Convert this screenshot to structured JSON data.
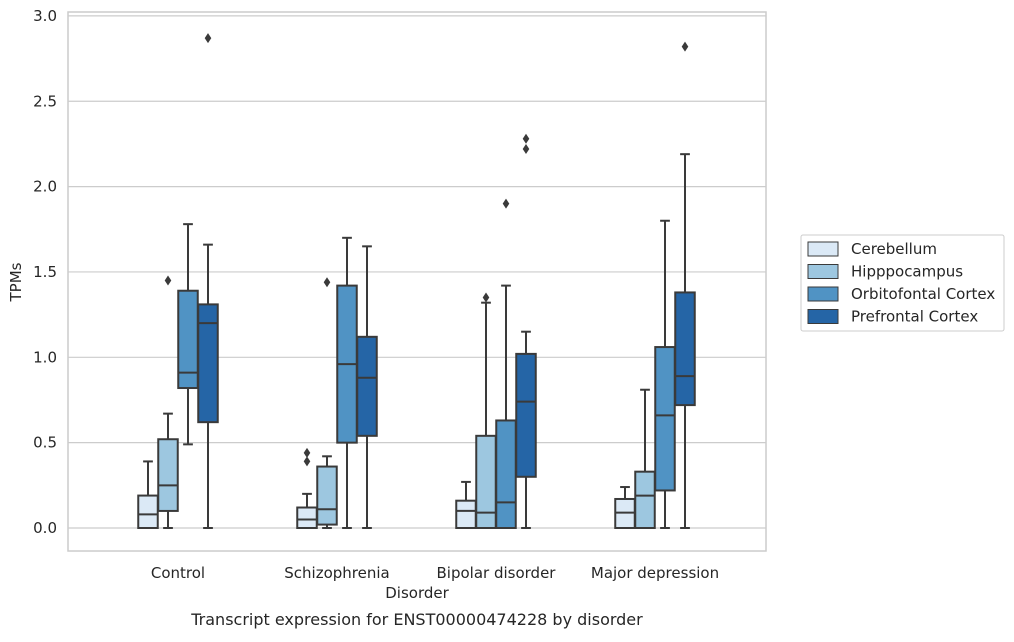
{
  "chart_data": {
    "type": "box",
    "title": "Transcript expression for ENST00000474228 by disorder",
    "xlabel": "Disorder",
    "ylabel": "TPMs",
    "ylim": [
      -0.14,
      3.02
    ],
    "yticks": [
      "0.0",
      "0.5",
      "1.0",
      "1.5",
      "2.0",
      "2.5",
      "3.0"
    ],
    "grid": "horizontal",
    "legend_position": "right",
    "categories": [
      "Control",
      "Schizophrenia",
      "Bipolar disorder",
      "Major depression"
    ],
    "series": [
      {
        "name": "Cerebellum",
        "color": "#dbe9f6",
        "boxes": [
          {
            "whislo": 0.0,
            "q1": 0.0,
            "med": 0.08,
            "q3": 0.19,
            "whishi": 0.39,
            "fliers": []
          },
          {
            "whislo": 0.0,
            "q1": 0.0,
            "med": 0.05,
            "q3": 0.12,
            "whishi": 0.2,
            "fliers": [
              0.39,
              0.44
            ]
          },
          {
            "whislo": 0.0,
            "q1": 0.0,
            "med": 0.1,
            "q3": 0.16,
            "whishi": 0.27,
            "fliers": []
          },
          {
            "whislo": 0.0,
            "q1": 0.0,
            "med": 0.09,
            "q3": 0.17,
            "whishi": 0.24,
            "fliers": []
          }
        ]
      },
      {
        "name": "Hipppocampus",
        "color": "#9dc7e0",
        "boxes": [
          {
            "whislo": 0.0,
            "q1": 0.1,
            "med": 0.25,
            "q3": 0.52,
            "whishi": 0.67,
            "fliers": [
              1.45
            ]
          },
          {
            "whislo": 0.0,
            "q1": 0.02,
            "med": 0.11,
            "q3": 0.36,
            "whishi": 0.42,
            "fliers": [
              1.44
            ]
          },
          {
            "whislo": 0.0,
            "q1": 0.0,
            "med": 0.09,
            "q3": 0.54,
            "whishi": 1.32,
            "fliers": [
              1.35
            ]
          },
          {
            "whislo": 0.0,
            "q1": 0.0,
            "med": 0.19,
            "q3": 0.33,
            "whishi": 0.81,
            "fliers": []
          }
        ]
      },
      {
        "name": "Orbitofontal Cortex",
        "color": "#5093c4",
        "boxes": [
          {
            "whislo": 0.49,
            "q1": 0.82,
            "med": 0.91,
            "q3": 1.39,
            "whishi": 1.78,
            "fliers": []
          },
          {
            "whislo": 0.0,
            "q1": 0.5,
            "med": 0.96,
            "q3": 1.42,
            "whishi": 1.7,
            "fliers": []
          },
          {
            "whislo": 0.0,
            "q1": 0.0,
            "med": 0.15,
            "q3": 0.63,
            "whishi": 1.42,
            "fliers": [
              1.9
            ]
          },
          {
            "whislo": 0.0,
            "q1": 0.22,
            "med": 0.66,
            "q3": 1.06,
            "whishi": 1.8,
            "fliers": []
          }
        ]
      },
      {
        "name": "Prefrontal Cortex",
        "color": "#2565a6",
        "boxes": [
          {
            "whislo": 0.0,
            "q1": 0.62,
            "med": 1.2,
            "q3": 1.31,
            "whishi": 1.66,
            "fliers": [
              2.87
            ]
          },
          {
            "whislo": 0.0,
            "q1": 0.54,
            "med": 0.88,
            "q3": 1.12,
            "whishi": 1.65,
            "fliers": []
          },
          {
            "whislo": 0.0,
            "q1": 0.3,
            "med": 0.74,
            "q3": 1.02,
            "whishi": 1.15,
            "fliers": [
              2.22,
              2.28
            ]
          },
          {
            "whislo": 0.0,
            "q1": 0.72,
            "med": 0.89,
            "q3": 1.38,
            "whishi": 2.19,
            "fliers": [
              2.82
            ]
          }
        ]
      }
    ]
  }
}
